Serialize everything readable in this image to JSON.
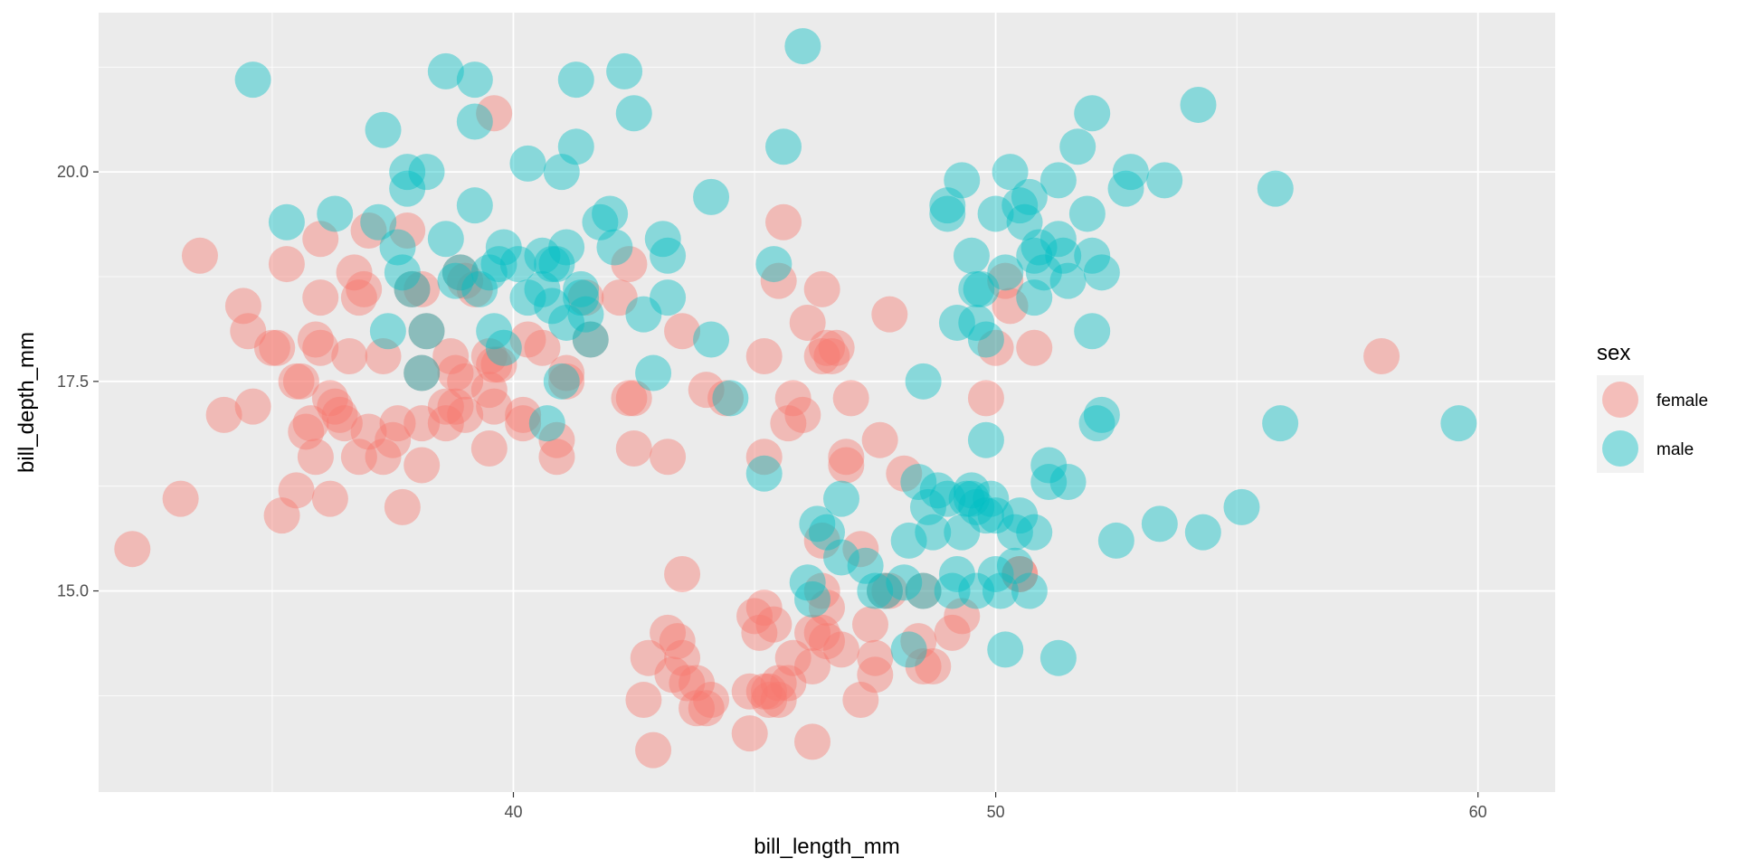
{
  "chart_data": {
    "type": "scatter",
    "xlabel": "bill_length_mm",
    "ylabel": "bill_depth_mm",
    "xlim": [
      31.4,
      61.6
    ],
    "ylim": [
      12.6,
      21.9
    ],
    "x_ticks": [
      40,
      50,
      60
    ],
    "x_tick_labels": [
      "40",
      "50",
      "60"
    ],
    "y_ticks": [
      15.0,
      17.5,
      20.0
    ],
    "y_tick_labels": [
      "15.0",
      "17.5",
      "20.0"
    ],
    "grid": true,
    "legend": {
      "title": "sex",
      "placement": "right"
    },
    "series": [
      {
        "name": "female",
        "color": "#F8766D",
        "points": [
          [
            32.1,
            15.5
          ],
          [
            33.1,
            16.1
          ],
          [
            33.5,
            19.0
          ],
          [
            34.0,
            17.1
          ],
          [
            34.4,
            18.4
          ],
          [
            34.5,
            18.1
          ],
          [
            34.6,
            17.2
          ],
          [
            35.0,
            17.9
          ],
          [
            35.1,
            17.9
          ],
          [
            35.2,
            15.9
          ],
          [
            35.3,
            18.9
          ],
          [
            35.5,
            17.5
          ],
          [
            35.5,
            16.2
          ],
          [
            35.6,
            17.5
          ],
          [
            35.7,
            16.9
          ],
          [
            35.8,
            17.0
          ],
          [
            35.9,
            16.6
          ],
          [
            35.9,
            18.0
          ],
          [
            36.0,
            17.9
          ],
          [
            36.0,
            19.2
          ],
          [
            36.0,
            18.5
          ],
          [
            36.2,
            17.3
          ],
          [
            36.2,
            16.1
          ],
          [
            36.3,
            17.2
          ],
          [
            36.4,
            17.1
          ],
          [
            36.5,
            17.0
          ],
          [
            36.6,
            17.8
          ],
          [
            36.7,
            18.8
          ],
          [
            36.8,
            16.6
          ],
          [
            36.8,
            18.5
          ],
          [
            36.9,
            18.6
          ],
          [
            37.0,
            16.9
          ],
          [
            37.0,
            19.3
          ],
          [
            37.3,
            16.6
          ],
          [
            37.3,
            17.8
          ],
          [
            37.5,
            16.8
          ],
          [
            37.6,
            17.0
          ],
          [
            37.7,
            16.0
          ],
          [
            37.8,
            19.3
          ],
          [
            37.9,
            18.6
          ],
          [
            38.1,
            18.6
          ],
          [
            38.1,
            17.6
          ],
          [
            38.1,
            17.0
          ],
          [
            38.1,
            16.5
          ],
          [
            38.2,
            18.1
          ],
          [
            38.6,
            17.0
          ],
          [
            38.6,
            17.2
          ],
          [
            38.7,
            17.8
          ],
          [
            38.8,
            17.6
          ],
          [
            38.9,
            18.8
          ],
          [
            38.8,
            17.2
          ],
          [
            39.0,
            17.5
          ],
          [
            39.0,
            17.1
          ],
          [
            39.0,
            18.7
          ],
          [
            39.2,
            18.6
          ],
          [
            39.5,
            16.7
          ],
          [
            39.5,
            17.8
          ],
          [
            39.5,
            17.4
          ],
          [
            39.6,
            17.7
          ],
          [
            39.6,
            17.2
          ],
          [
            39.6,
            20.7
          ],
          [
            39.7,
            17.7
          ],
          [
            40.2,
            17.0
          ],
          [
            40.2,
            17.1
          ],
          [
            40.3,
            18.0
          ],
          [
            40.6,
            17.9
          ],
          [
            40.9,
            16.8
          ],
          [
            40.9,
            16.6
          ],
          [
            41.1,
            17.5
          ],
          [
            41.1,
            17.6
          ],
          [
            41.6,
            18.0
          ],
          [
            42.2,
            18.5
          ],
          [
            42.4,
            17.3
          ],
          [
            42.5,
            17.3
          ],
          [
            42.5,
            16.7
          ],
          [
            42.7,
            13.7
          ],
          [
            42.8,
            14.2
          ],
          [
            42.9,
            13.1
          ],
          [
            43.2,
            14.5
          ],
          [
            43.2,
            16.6
          ],
          [
            43.3,
            14.0
          ],
          [
            43.4,
            14.4
          ],
          [
            43.5,
            15.2
          ],
          [
            43.5,
            14.2
          ],
          [
            43.6,
            13.9
          ],
          [
            43.8,
            13.9
          ],
          [
            43.8,
            13.6
          ],
          [
            44.0,
            13.6
          ],
          [
            44.4,
            17.3
          ],
          [
            44.9,
            13.8
          ],
          [
            44.9,
            13.3
          ],
          [
            45.0,
            14.7
          ],
          [
            45.1,
            14.5
          ],
          [
            45.2,
            14.8
          ],
          [
            45.2,
            16.6
          ],
          [
            45.2,
            17.8
          ],
          [
            45.2,
            13.8
          ],
          [
            45.3,
            13.7
          ],
          [
            45.3,
            13.8
          ],
          [
            45.4,
            14.6
          ],
          [
            45.5,
            13.9
          ],
          [
            45.5,
            18.7
          ],
          [
            45.5,
            13.7
          ],
          [
            45.6,
            19.4
          ],
          [
            45.7,
            13.9
          ],
          [
            45.7,
            17.0
          ],
          [
            45.8,
            14.2
          ],
          [
            45.8,
            17.3
          ],
          [
            46.0,
            17.1
          ],
          [
            46.1,
            18.2
          ],
          [
            46.2,
            14.1
          ],
          [
            46.2,
            13.2
          ],
          [
            46.2,
            14.5
          ],
          [
            46.4,
            18.6
          ],
          [
            46.4,
            15.0
          ],
          [
            46.4,
            14.5
          ],
          [
            46.4,
            15.6
          ],
          [
            46.4,
            17.8
          ],
          [
            46.5,
            17.9
          ],
          [
            46.5,
            14.8
          ],
          [
            46.5,
            14.4
          ],
          [
            46.6,
            17.8
          ],
          [
            46.7,
            17.9
          ],
          [
            46.8,
            14.3
          ],
          [
            46.9,
            16.6
          ],
          [
            47.0,
            17.3
          ],
          [
            47.2,
            13.7
          ],
          [
            47.2,
            15.5
          ],
          [
            47.4,
            14.6
          ],
          [
            47.5,
            14.2
          ],
          [
            47.5,
            14.0
          ],
          [
            47.6,
            16.8
          ],
          [
            47.7,
            15.0
          ],
          [
            47.8,
            15.0
          ],
          [
            47.8,
            18.3
          ],
          [
            48.1,
            16.4
          ],
          [
            48.4,
            14.4
          ],
          [
            48.5,
            14.1
          ],
          [
            48.5,
            15.0
          ],
          [
            48.7,
            14.1
          ],
          [
            49.1,
            14.5
          ],
          [
            49.3,
            14.7
          ],
          [
            49.8,
            17.3
          ],
          [
            50.0,
            17.9
          ],
          [
            50.2,
            18.7
          ],
          [
            50.3,
            18.4
          ],
          [
            50.5,
            15.2
          ],
          [
            50.5,
            15.2
          ],
          [
            50.8,
            17.9
          ],
          [
            58.0,
            17.8
          ],
          [
            42.4,
            18.9
          ],
          [
            43.5,
            18.1
          ],
          [
            41.5,
            18.5
          ],
          [
            46.9,
            16.5
          ],
          [
            44.1,
            13.7
          ],
          [
            44.0,
            17.4
          ]
        ]
      },
      {
        "name": "male",
        "color": "#00BFC4",
        "points": [
          [
            34.6,
            21.1
          ],
          [
            35.3,
            19.4
          ],
          [
            36.3,
            19.5
          ],
          [
            37.2,
            19.4
          ],
          [
            37.3,
            20.5
          ],
          [
            37.6,
            19.1
          ],
          [
            37.7,
            18.8
          ],
          [
            37.8,
            20.0
          ],
          [
            37.8,
            19.8
          ],
          [
            37.9,
            18.6
          ],
          [
            38.2,
            18.1
          ],
          [
            38.2,
            20.0
          ],
          [
            38.6,
            19.2
          ],
          [
            38.6,
            21.2
          ],
          [
            38.8,
            18.7
          ],
          [
            38.9,
            18.8
          ],
          [
            39.2,
            21.1
          ],
          [
            39.2,
            20.6
          ],
          [
            39.2,
            19.6
          ],
          [
            39.3,
            18.6
          ],
          [
            39.5,
            18.8
          ],
          [
            39.6,
            18.1
          ],
          [
            39.7,
            18.9
          ],
          [
            39.8,
            19.1
          ],
          [
            40.3,
            20.1
          ],
          [
            40.6,
            19.0
          ],
          [
            40.6,
            18.6
          ],
          [
            40.7,
            17.0
          ],
          [
            40.8,
            18.9
          ],
          [
            41.0,
            20.0
          ],
          [
            41.1,
            19.1
          ],
          [
            41.1,
            18.2
          ],
          [
            41.3,
            21.1
          ],
          [
            41.3,
            20.3
          ],
          [
            41.4,
            18.5
          ],
          [
            41.5,
            18.3
          ],
          [
            41.8,
            19.4
          ],
          [
            42.0,
            19.5
          ],
          [
            42.1,
            19.1
          ],
          [
            42.3,
            21.2
          ],
          [
            42.5,
            20.7
          ],
          [
            42.7,
            18.3
          ],
          [
            42.9,
            17.6
          ],
          [
            43.1,
            19.2
          ],
          [
            43.2,
            19.0
          ],
          [
            43.2,
            18.5
          ],
          [
            44.1,
            19.7
          ],
          [
            44.1,
            18.0
          ],
          [
            45.2,
            16.4
          ],
          [
            45.6,
            20.3
          ],
          [
            46.0,
            21.5
          ],
          [
            46.1,
            15.1
          ],
          [
            46.2,
            14.9
          ],
          [
            46.3,
            15.8
          ],
          [
            46.5,
            15.7
          ],
          [
            46.8,
            15.4
          ],
          [
            46.8,
            16.1
          ],
          [
            47.3,
            15.3
          ],
          [
            47.5,
            15.0
          ],
          [
            47.7,
            15.0
          ],
          [
            48.1,
            15.1
          ],
          [
            48.2,
            15.6
          ],
          [
            48.2,
            14.3
          ],
          [
            48.4,
            16.3
          ],
          [
            48.5,
            15.0
          ],
          [
            48.6,
            16.0
          ],
          [
            48.7,
            15.7
          ],
          [
            48.8,
            16.2
          ],
          [
            49.0,
            16.1
          ],
          [
            49.1,
            15.0
          ],
          [
            49.2,
            15.2
          ],
          [
            49.3,
            15.7
          ],
          [
            49.4,
            16.1
          ],
          [
            49.5,
            16.2
          ],
          [
            49.5,
            16.1
          ],
          [
            49.6,
            15.0
          ],
          [
            49.6,
            16.0
          ],
          [
            49.8,
            15.9
          ],
          [
            49.8,
            16.8
          ],
          [
            49.9,
            16.1
          ],
          [
            50.0,
            15.2
          ],
          [
            50.0,
            15.9
          ],
          [
            50.1,
            15.0
          ],
          [
            50.2,
            14.3
          ],
          [
            50.4,
            15.3
          ],
          [
            50.4,
            15.7
          ],
          [
            50.5,
            15.9
          ],
          [
            50.7,
            15.0
          ],
          [
            50.8,
            15.7
          ],
          [
            51.1,
            16.3
          ],
          [
            51.1,
            16.5
          ],
          [
            51.3,
            14.2
          ],
          [
            51.5,
            16.3
          ],
          [
            52.1,
            17.0
          ],
          [
            52.2,
            17.1
          ],
          [
            52.5,
            15.6
          ],
          [
            53.4,
            15.8
          ],
          [
            54.3,
            15.7
          ],
          [
            55.1,
            16.0
          ],
          [
            55.9,
            17.0
          ],
          [
            59.6,
            17.0
          ],
          [
            49.0,
            19.5
          ],
          [
            49.0,
            19.6
          ],
          [
            49.2,
            18.2
          ],
          [
            49.3,
            19.9
          ],
          [
            49.5,
            19.0
          ],
          [
            49.6,
            18.2
          ],
          [
            49.6,
            18.6
          ],
          [
            49.7,
            18.6
          ],
          [
            50.0,
            19.5
          ],
          [
            50.2,
            18.8
          ],
          [
            50.3,
            20.0
          ],
          [
            50.5,
            19.6
          ],
          [
            50.6,
            19.4
          ],
          [
            50.7,
            19.7
          ],
          [
            50.8,
            19.0
          ],
          [
            50.8,
            18.5
          ],
          [
            50.9,
            19.1
          ],
          [
            51.0,
            18.8
          ],
          [
            51.3,
            19.2
          ],
          [
            51.3,
            19.9
          ],
          [
            51.4,
            19.0
          ],
          [
            51.5,
            18.7
          ],
          [
            51.7,
            20.3
          ],
          [
            51.9,
            19.5
          ],
          [
            52.0,
            18.1
          ],
          [
            52.0,
            19.0
          ],
          [
            52.0,
            20.7
          ],
          [
            52.2,
            18.8
          ],
          [
            52.7,
            19.8
          ],
          [
            52.8,
            20.0
          ],
          [
            53.5,
            19.9
          ],
          [
            54.2,
            20.8
          ],
          [
            55.8,
            19.8
          ],
          [
            45.4,
            18.9
          ],
          [
            44.5,
            17.3
          ],
          [
            48.5,
            17.5
          ],
          [
            40.8,
            18.4
          ],
          [
            41.0,
            17.5
          ],
          [
            39.8,
            17.9
          ],
          [
            40.3,
            18.5
          ],
          [
            40.9,
            18.9
          ],
          [
            41.4,
            18.6
          ],
          [
            41.6,
            18.0
          ],
          [
            40.1,
            18.9
          ],
          [
            37.4,
            18.1
          ],
          [
            38.1,
            17.6
          ],
          [
            49.8,
            18.0
          ]
        ]
      }
    ]
  }
}
